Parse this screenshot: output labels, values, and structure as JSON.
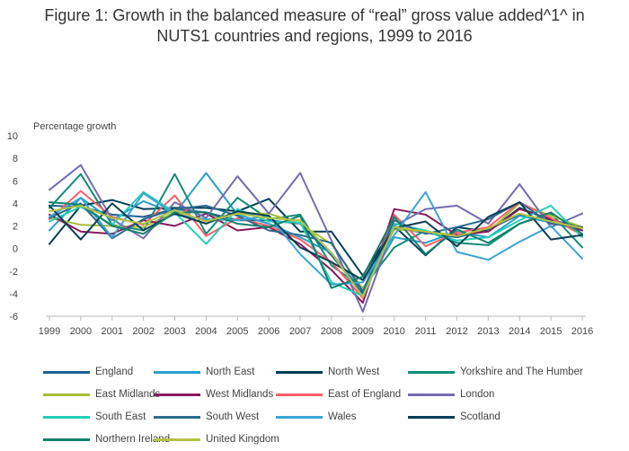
{
  "title_line1": "Figure 1: Growth in the balanced measure of “real” gross value added^1^ in",
  "title_line2": "NUTS1 countries and regions, 1999 to 2016",
  "chart_data": {
    "type": "line",
    "title": "Figure 1: Growth in the balanced measure of “real” gross value added^1^ in NUTS1 countries and regions, 1999 to 2016",
    "ylabel": "Percentage growth",
    "xlabel": "",
    "x": [
      1999,
      2000,
      2001,
      2002,
      2003,
      2004,
      2005,
      2006,
      2007,
      2008,
      2009,
      2010,
      2011,
      2012,
      2013,
      2014,
      2015,
      2016
    ],
    "ylim": [
      -6,
      10
    ],
    "yticks": [
      -6,
      -4,
      -2,
      0,
      2,
      4,
      6,
      8,
      10
    ],
    "grid": false,
    "legend_position": "bottom",
    "series": [
      {
        "name": "England",
        "color": "#206095",
        "values": [
          3.8,
          3.7,
          3.0,
          2.8,
          3.5,
          3.2,
          2.5,
          2.5,
          2.2,
          -0.6,
          -4.0,
          1.8,
          1.4,
          1.0,
          1.7,
          3.0,
          2.5,
          1.9
        ]
      },
      {
        "name": "North East",
        "color": "#27a0cc",
        "values": [
          1.6,
          4.5,
          2.5,
          4.2,
          3.1,
          6.7,
          3.0,
          2.2,
          1.0,
          -0.4,
          -3.8,
          1.0,
          0.5,
          1.5,
          1.0,
          2.9,
          2.3,
          1.6
        ]
      },
      {
        "name": "North West",
        "color": "#003c57",
        "values": [
          0.4,
          3.8,
          4.3,
          3.5,
          3.6,
          3.6,
          3.3,
          4.4,
          1.5,
          1.5,
          -2.4,
          2.0,
          -0.6,
          1.9,
          1.5,
          3.6,
          2.5,
          1.9
        ]
      },
      {
        "name": "Yorkshire and The Humber",
        "color": "#118c7b",
        "values": [
          3.6,
          6.6,
          2.1,
          1.6,
          6.6,
          1.3,
          4.5,
          2.6,
          3.0,
          -1.5,
          -3.5,
          0.1,
          1.6,
          0.5,
          0.3,
          2.2,
          3.1,
          0.1
        ]
      },
      {
        "name": "East Midlands",
        "color": "#a8bd3a",
        "values": [
          2.7,
          2.1,
          2.0,
          1.9,
          3.2,
          2.5,
          3.1,
          3.1,
          2.2,
          0.4,
          -3.6,
          1.7,
          1.5,
          1.2,
          1.5,
          4.0,
          2.9,
          1.9
        ]
      },
      {
        "name": "West Midlands",
        "color": "#871a5b",
        "values": [
          3.0,
          1.5,
          1.3,
          2.5,
          2.0,
          3.1,
          1.6,
          1.9,
          0.4,
          -1.9,
          -4.8,
          3.5,
          3.0,
          1.2,
          1.5,
          3.5,
          2.6,
          1.6
        ]
      },
      {
        "name": "East of England",
        "color": "#f66068",
        "values": [
          2.6,
          5.1,
          2.8,
          2.1,
          4.7,
          1.1,
          2.7,
          2.0,
          0.8,
          -1.2,
          -4.4,
          3.0,
          0.2,
          1.4,
          1.9,
          4.1,
          2.7,
          1.2
        ]
      },
      {
        "name": "London",
        "color": "#746cb1",
        "values": [
          5.2,
          7.4,
          2.6,
          0.9,
          4.1,
          2.7,
          6.4,
          3.1,
          6.7,
          0.7,
          -5.6,
          2.0,
          3.5,
          3.8,
          2.2,
          5.7,
          1.9,
          3.1
        ]
      },
      {
        "name": "South East",
        "color": "#22d0b6",
        "values": [
          2.4,
          3.7,
          2.1,
          5.0,
          3.2,
          0.4,
          3.5,
          2.4,
          2.3,
          -3.0,
          -4.2,
          2.2,
          1.6,
          0.7,
          1.0,
          2.5,
          3.8,
          1.0
        ]
      },
      {
        "name": "South West",
        "color": "#2d6b8f",
        "values": [
          2.7,
          4.0,
          0.9,
          2.6,
          3.5,
          3.8,
          2.9,
          1.6,
          1.2,
          0.5,
          -3.8,
          2.5,
          1.3,
          1.9,
          2.6,
          4.1,
          2.2,
          1.9
        ]
      },
      {
        "name": "Wales",
        "color": "#3ba5d4",
        "values": [
          2.8,
          4.5,
          1.0,
          4.9,
          3.0,
          2.6,
          2.5,
          2.9,
          -0.5,
          -3.2,
          -3.0,
          1.2,
          5.0,
          -0.3,
          -1.0,
          0.6,
          2.0,
          -0.9
        ]
      },
      {
        "name": "Scotland",
        "color": "#0b3d54",
        "values": [
          3.8,
          0.8,
          4.0,
          1.6,
          3.1,
          2.2,
          3.3,
          2.9,
          0.1,
          -1.2,
          -2.8,
          1.8,
          2.4,
          0.2,
          2.8,
          4.1,
          0.8,
          1.2
        ]
      },
      {
        "name": "Northern Ireland",
        "color": "#14806b",
        "values": [
          4.1,
          3.9,
          2.0,
          1.3,
          3.2,
          3.2,
          2.2,
          1.9,
          2.9,
          -3.5,
          -2.5,
          2.8,
          -0.5,
          1.7,
          0.5,
          2.2,
          3.2,
          1.3
        ]
      },
      {
        "name": "United Kingdom",
        "color": "#b5c244",
        "values": [
          3.3,
          3.8,
          2.7,
          2.2,
          3.4,
          2.4,
          3.1,
          2.7,
          2.5,
          -0.4,
          -4.3,
          1.9,
          1.5,
          1.1,
          1.8,
          3.1,
          2.4,
          1.8
        ]
      }
    ]
  }
}
